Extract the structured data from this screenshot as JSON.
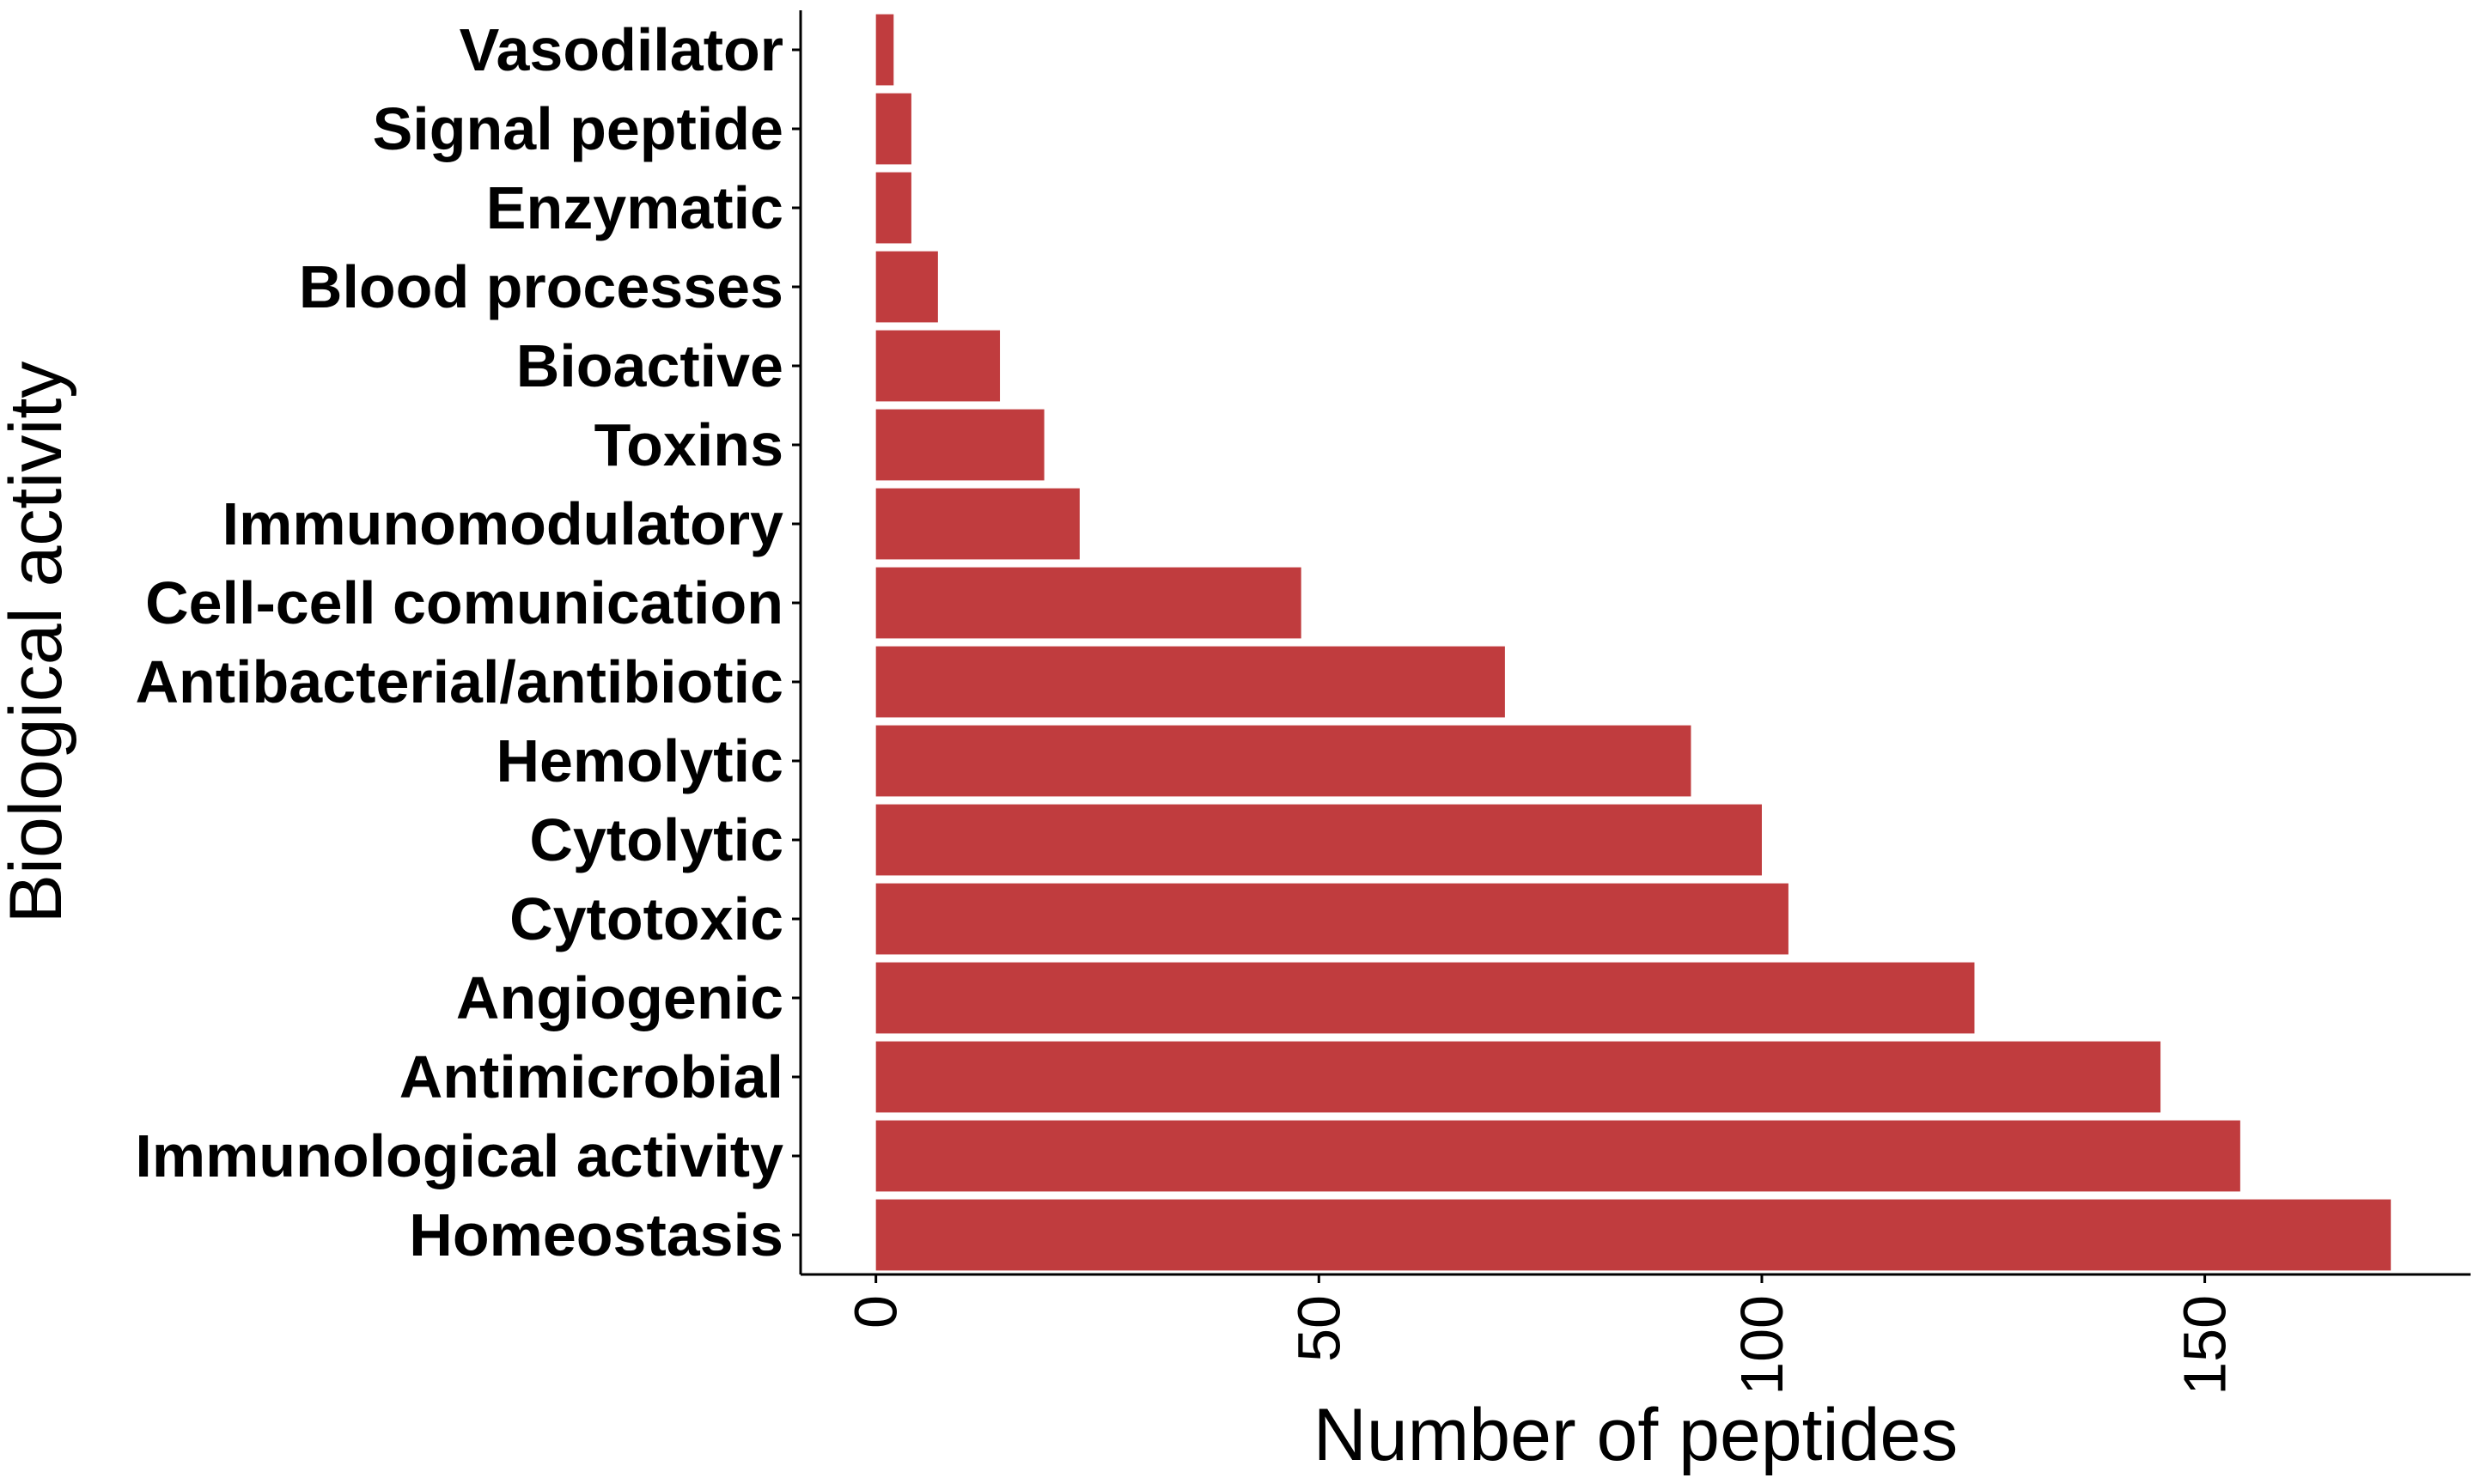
{
  "chart_data": {
    "type": "bar",
    "orientation": "horizontal",
    "xlabel": "Number of peptides",
    "ylabel": "Biological activity",
    "xlim": [
      -8.5,
      180
    ],
    "x_ticks": [
      0,
      50,
      100,
      150
    ],
    "categories": [
      "Vasodilator",
      "Signal peptide",
      "Enzymatic",
      "Blood processes",
      "Bioactive",
      "Toxins",
      "Immunomodulatory",
      "Cell-cell comunication",
      "Antibacterial/antibiotic",
      "Hemolytic",
      "Cytolytic",
      "Cytotoxic",
      "Angiogenic",
      "Antimicrobial",
      "Immunological activity",
      "Homeostasis"
    ],
    "values": [
      2,
      4,
      4,
      7,
      14,
      19,
      23,
      48,
      71,
      92,
      100,
      103,
      124,
      145,
      154,
      171
    ],
    "bar_color": "#C03C3E",
    "grid": false,
    "legend": "none"
  }
}
